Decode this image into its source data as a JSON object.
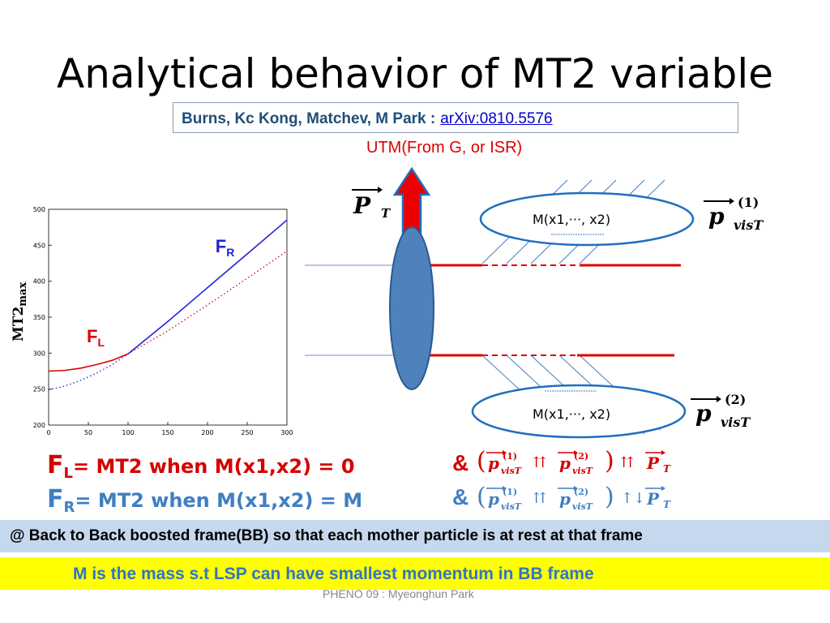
{
  "slide": {
    "title": "Analytical behavior of MT2 variable",
    "reference": {
      "authors": "Burns, Kc Kong, Matchev, M Park :",
      "arxiv": "arXiv:0810.5576"
    },
    "utm_label": "UTM(From G, or ISR)",
    "diagram": {
      "pt_label": "P",
      "pt_sub": "T",
      "mass_label_top": "M(x1,···, x2)",
      "mass_label_bottom": "M(x1,···, x2)",
      "vis_p": "p",
      "vis_sup_1": "(1)",
      "vis_sup_2": "(2)",
      "vis_sub": "visT"
    },
    "formulas": {
      "fl_letter": "F",
      "fl_sub": "L",
      "fl_text": "= MT2 when M(x1,x2) = 0",
      "fr_letter": "F",
      "fr_sub": "R",
      "fr_text": "= MT2 when M(x1,x2) = M",
      "amp": "&",
      "rel_parallel": "⇈",
      "rel_antiparallel": "↑↓"
    },
    "band_blue": "@ Back to Back boosted frame(BB) so that each mother particle is at rest at that frame",
    "band_yellow": "M is the mass s.t  LSP can have smallest momentum  in BB frame",
    "footer": "PHENO 09  : Myeonghun Park",
    "colors": {
      "red": "#dd0000",
      "blue": "#3f7fc2",
      "dark_blue": "#1f4e79",
      "ellipse_fill": "#4f81bd",
      "yellow": "#ffff00"
    }
  },
  "chart_data": {
    "type": "line",
    "xlabel": "",
    "ylabel": "MT2max",
    "xlim": [
      0,
      300
    ],
    "ylim": [
      200,
      500
    ],
    "x_ticks": [
      "0",
      "50",
      "100",
      "150",
      "200",
      "250",
      "300"
    ],
    "y_ticks": [
      "200",
      "250",
      "300",
      "350",
      "400",
      "450",
      "500"
    ],
    "series": [
      {
        "name": "FL",
        "style": "solid",
        "color": "#dd0000",
        "x": [
          0,
          20,
          40,
          60,
          80,
          100
        ],
        "y": [
          275,
          276,
          279,
          284,
          290,
          299
        ]
      },
      {
        "name": "FL",
        "style": "dotted",
        "color": "#dd0000",
        "x": [
          100,
          150,
          200,
          250,
          300
        ],
        "y": [
          299,
          331,
          367,
          404,
          442
        ]
      },
      {
        "name": "FR",
        "style": "dotted",
        "color": "#2222dd",
        "x": [
          0,
          20,
          40,
          60,
          80,
          100
        ],
        "y": [
          249,
          254,
          262,
          272,
          284,
          299
        ]
      },
      {
        "name": "FR",
        "style": "solid",
        "color": "#2222dd",
        "x": [
          100,
          150,
          200,
          250,
          300
        ],
        "y": [
          299,
          344,
          391,
          438,
          485
        ]
      }
    ],
    "annotations": [
      {
        "letter": "F",
        "sub": "R",
        "x": 210,
        "y": 440,
        "color": "#2222dd"
      },
      {
        "letter": "F",
        "sub": "L",
        "x": 48,
        "y": 315,
        "color": "#dd0000"
      }
    ]
  }
}
